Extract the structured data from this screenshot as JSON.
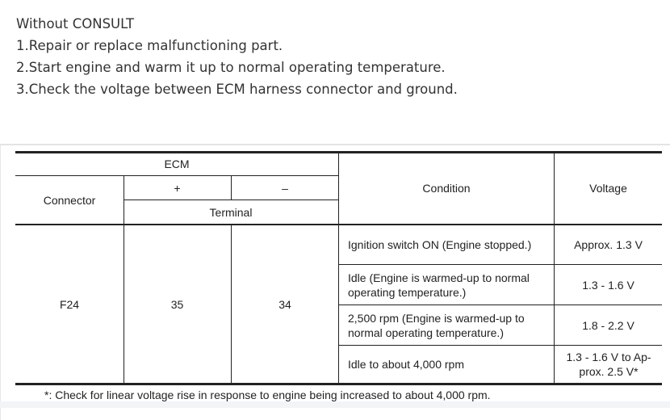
{
  "intro": {
    "heading": "Without CONSULT",
    "steps": [
      "1.Repair or replace malfunctioning part.",
      "2.Start engine and warm it up to normal operating temperature.",
      "3.Check the voltage between ECM harness connector and ground."
    ]
  },
  "table": {
    "headers": {
      "ecm": "ECM",
      "connector": "Connector",
      "plus": "+",
      "minus": "–",
      "terminal": "Terminal",
      "condition": "Condition",
      "voltage": "Voltage"
    },
    "connector": "F24",
    "plus_terminal": "35",
    "minus_terminal": "34",
    "rows": [
      {
        "condition": "Ignition switch ON (Engine stopped.)",
        "voltage": "Approx. 1.3 V"
      },
      {
        "condition": "Idle (Engine is warmed-up to normal operating temperature.)",
        "voltage": "1.3 - 1.6 V"
      },
      {
        "condition": "2,500 rpm (Engine is warmed-up to normal operating temperature.)",
        "voltage": "1.8 - 2.2 V"
      },
      {
        "condition": "Idle to about 4,000 rpm",
        "voltage": "1.3 - 1.6 V to Ap-prox. 2.5 V*"
      }
    ],
    "footnote": "*: Check for linear voltage rise in response to engine being increased to about 4,000 rpm."
  }
}
